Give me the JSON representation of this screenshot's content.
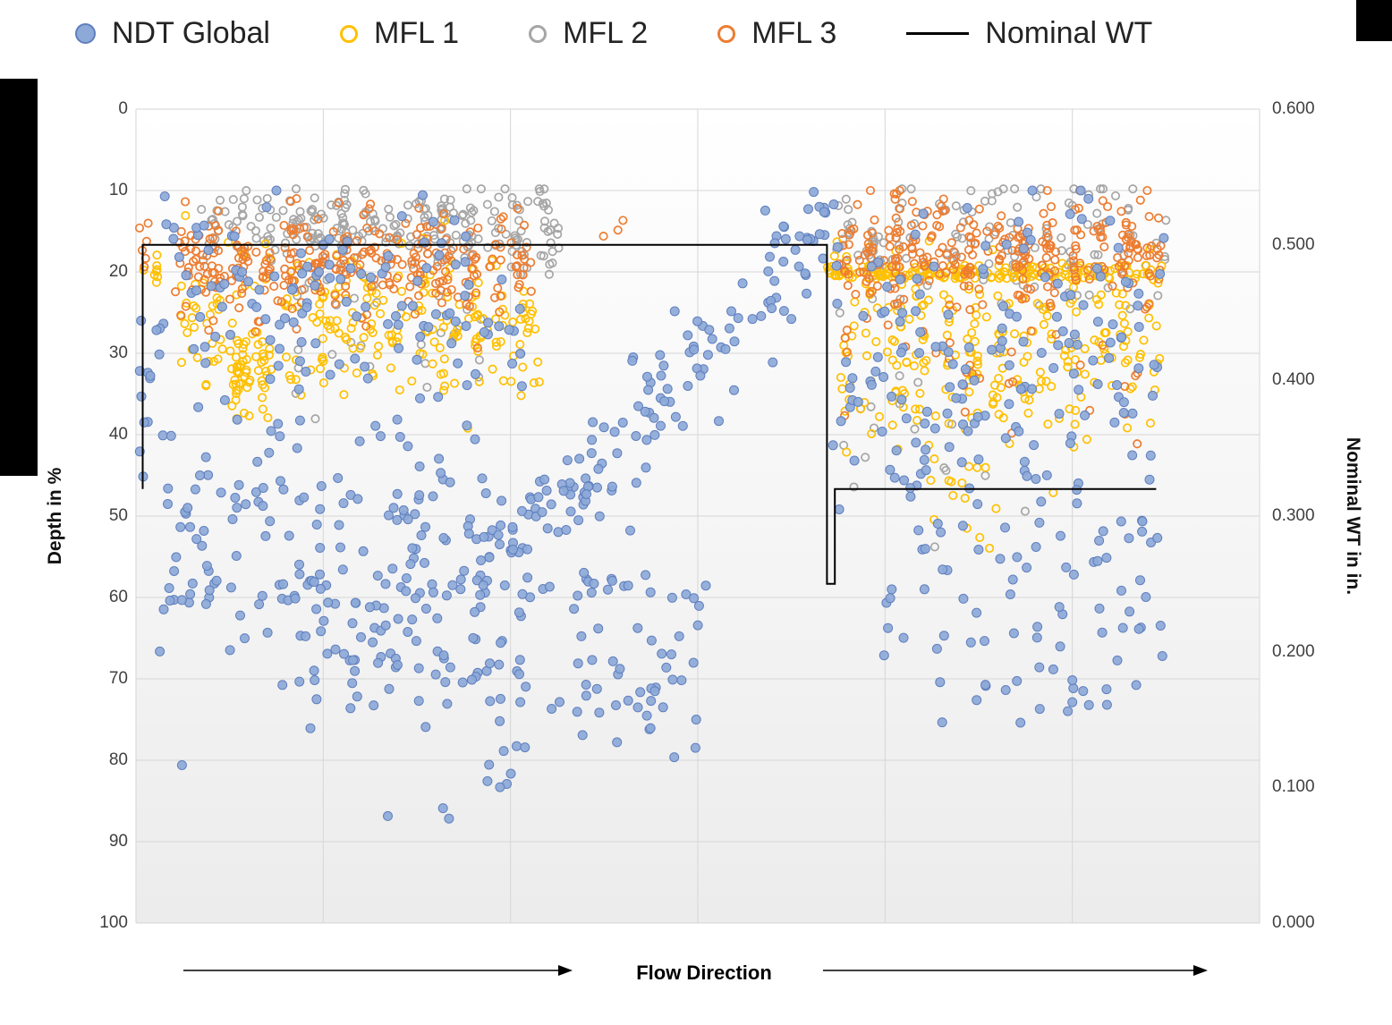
{
  "chart_data": {
    "type": "scatter",
    "title": "",
    "seed": 1337,
    "x_axis": {
      "label": "Flow Direction",
      "tick_labels": [],
      "range": [
        0,
        1
      ],
      "gridline_count": 7
    },
    "y_left": {
      "label": "Depth in %",
      "ticks": [
        0,
        10,
        20,
        30,
        40,
        50,
        60,
        70,
        80,
        90,
        100
      ],
      "range": [
        0,
        100
      ],
      "inverted": true
    },
    "y_right": {
      "label": "Nominal WT in in.",
      "tick_labels": [
        "0.600",
        "0.500",
        "0.400",
        "0.300",
        "0.200",
        "0.100",
        "0.000"
      ],
      "range": [
        0,
        0.6
      ]
    },
    "grid_color": "#d6d6d6",
    "plot_bg_top": "#ffffff",
    "plot_bg_bottom": "#ececec",
    "series": [
      {
        "name": "NDT Global",
        "marker": "filled-circle",
        "fill": "#8da9d8",
        "stroke": "#5f7fbe",
        "z": 4,
        "clusters": [
          {
            "type": "gauss",
            "x0": 0.002,
            "x1": 0.014,
            "mean": 36,
            "sd": 8,
            "n": 10
          },
          {
            "type": "gauss",
            "x0": 0.015,
            "x1": 0.345,
            "mean": 24,
            "sd": 7,
            "n": 130
          },
          {
            "type": "gauss",
            "x0": 0.015,
            "x1": 0.33,
            "mean": 54,
            "sd": 9,
            "n": 170
          },
          {
            "type": "gauss",
            "x0": 0.13,
            "x1": 0.34,
            "mean": 67,
            "sd": 5,
            "n": 60
          },
          {
            "type": "band",
            "x0": 0.3,
            "x1": 0.625,
            "d0": 58,
            "d1": 13,
            "sd": 3.5,
            "n": 150
          },
          {
            "type": "gauss",
            "x0": 0.33,
            "x1": 0.52,
            "mean": 62,
            "sd": 9,
            "n": 55
          },
          {
            "type": "gauss",
            "x0": 0.36,
            "x1": 0.5,
            "mean": 73,
            "sd": 4,
            "n": 25
          },
          {
            "type": "gauss",
            "x0": 0.26,
            "x1": 0.34,
            "mean": 84,
            "sd": 4,
            "n": 8,
            "dmax": 91
          },
          {
            "type": "gauss",
            "x0": 0.62,
            "x1": 0.915,
            "mean": 32,
            "sd": 11,
            "n": 170
          },
          {
            "type": "gauss",
            "x0": 0.66,
            "x1": 0.915,
            "mean": 58,
            "sd": 7,
            "n": 70
          },
          {
            "type": "gauss",
            "x0": 0.7,
            "x1": 0.89,
            "mean": 72,
            "sd": 3,
            "n": 12
          }
        ]
      },
      {
        "name": "MFL 1",
        "marker": "open-circle",
        "stroke": "#FFC000",
        "z": 2,
        "clusters": [
          {
            "type": "gauss",
            "x0": 0.002,
            "x1": 0.02,
            "mean": 20,
            "sd": 1.2,
            "n": 8
          },
          {
            "type": "gauss",
            "x0": 0.035,
            "x1": 0.36,
            "mean": 26,
            "sd": 4.5,
            "n": 240,
            "cols": 14
          },
          {
            "type": "gauss",
            "x0": 0.08,
            "x1": 0.13,
            "mean": 33,
            "sd": 3,
            "n": 45,
            "cols": 2
          },
          {
            "type": "gauss",
            "x0": 0.62,
            "x1": 0.915,
            "mean": 29,
            "sd": 6,
            "n": 240,
            "cols": 13
          },
          {
            "type": "line",
            "x0": 0.615,
            "x1": 0.915,
            "depth": 20,
            "jitter": 0.8,
            "n": 150
          },
          {
            "type": "gauss",
            "x0": 0.7,
            "x1": 0.78,
            "mean": 42,
            "sd": 5,
            "n": 25
          }
        ]
      },
      {
        "name": "MFL 2",
        "marker": "open-circle",
        "stroke": "#A6A6A6",
        "z": 1,
        "clusters": [
          {
            "type": "gauss",
            "x0": 0.06,
            "x1": 0.375,
            "mean": 14.5,
            "sd": 2.5,
            "n": 240,
            "cols": 14,
            "dmin": 9.8
          },
          {
            "type": "gauss",
            "x0": 0.13,
            "x1": 0.31,
            "mean": 28,
            "sd": 4,
            "n": 28
          },
          {
            "type": "gauss",
            "x0": 0.62,
            "x1": 0.92,
            "mean": 16,
            "sd": 4,
            "n": 130,
            "cols": 12,
            "dmin": 9.8
          },
          {
            "type": "gauss",
            "x0": 0.617,
            "x1": 0.8,
            "mean": 36,
            "sd": 8,
            "n": 22
          }
        ]
      },
      {
        "name": "MFL 3",
        "marker": "open-circle",
        "stroke": "#ED7D31",
        "z": 3,
        "clusters": [
          {
            "type": "gauss",
            "x0": 0.002,
            "x1": 0.012,
            "mean": 15,
            "sd": 3,
            "n": 6
          },
          {
            "type": "gauss",
            "x0": 0.035,
            "x1": 0.355,
            "mean": 19,
            "sd": 3.2,
            "n": 300,
            "cols": 14,
            "dmin": 11
          },
          {
            "type": "gauss",
            "x0": 0.41,
            "x1": 0.44,
            "mean": 14,
            "sd": 1,
            "n": 3
          },
          {
            "type": "gauss",
            "x0": 0.62,
            "x1": 0.915,
            "mean": 17.5,
            "sd": 3.5,
            "n": 280,
            "cols": 13,
            "dmin": 10
          },
          {
            "type": "gauss",
            "x0": 0.63,
            "x1": 0.9,
            "mean": 30,
            "sd": 5,
            "n": 35
          }
        ]
      },
      {
        "name": "Nominal WT",
        "marker": "line",
        "stroke": "#000000",
        "z": 5,
        "points_wt": [
          [
            0.006,
            0.32
          ],
          [
            0.006,
            0.5
          ],
          [
            0.615,
            0.5
          ],
          [
            0.615,
            0.25
          ],
          [
            0.622,
            0.25
          ],
          [
            0.622,
            0.32
          ],
          [
            0.908,
            0.32
          ]
        ],
        "segment_values_in": {
          "first_segment": 0.5,
          "transition": 0.25,
          "second_segment": 0.32
        }
      }
    ],
    "legend_position": "top"
  }
}
